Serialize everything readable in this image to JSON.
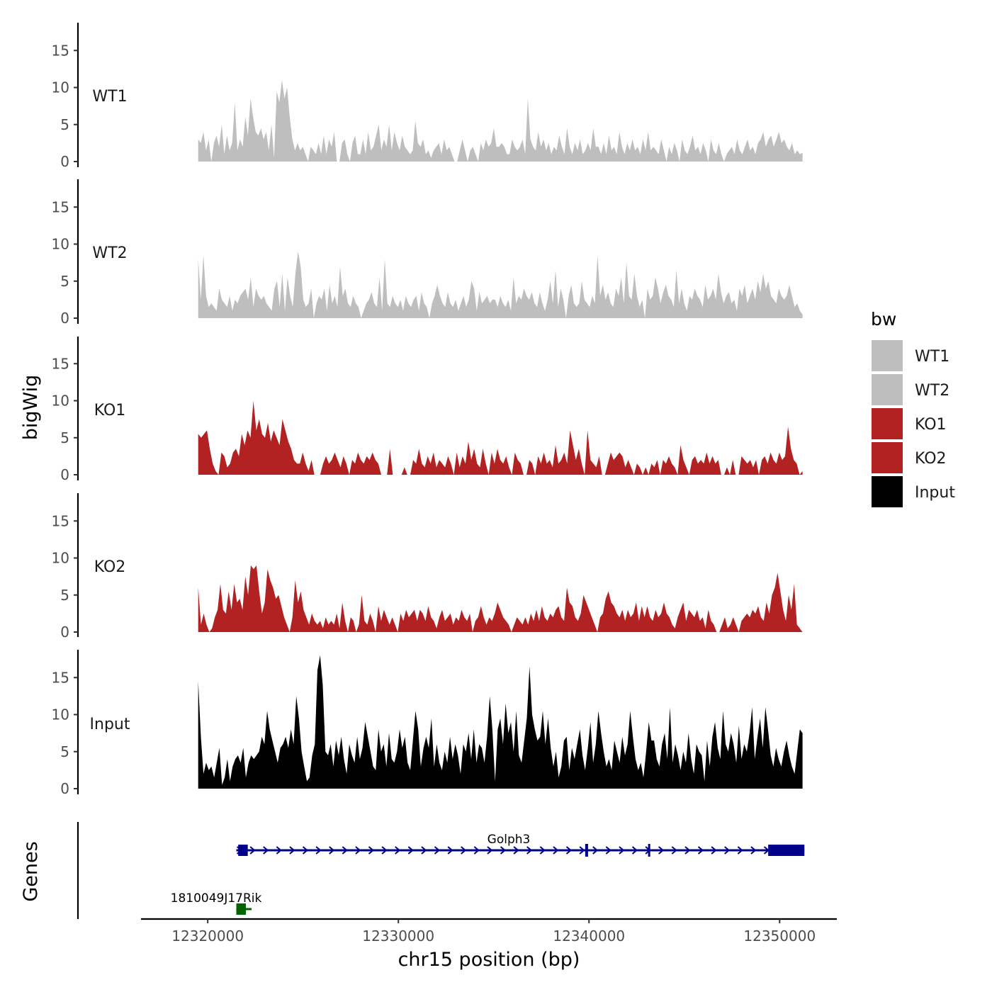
{
  "chart_data": {
    "type": "area",
    "title": "",
    "xlabel": "chr15 position (bp)",
    "ylabel": "bigWig",
    "genes_label": "Genes",
    "xlim": [
      12316500,
      12353000
    ],
    "ylim": [
      0,
      19
    ],
    "x_ticks": [
      12320000,
      12330000,
      12340000,
      12350000
    ],
    "x_tick_labels": [
      "12320000",
      "12330000",
      "12340000",
      "12350000"
    ],
    "y_ticks": [
      0,
      5,
      10,
      15
    ],
    "y_tick_labels": [
      "0",
      "5",
      "10",
      "15"
    ],
    "track_range": [
      12319500,
      12351200
    ],
    "tracks": [
      {
        "name": "WT1",
        "color": "#bebebe",
        "values": [
          3,
          2.5,
          4,
          1.5,
          3,
          0,
          2.5,
          3.5,
          2,
          5,
          1,
          3.5,
          1.5,
          2.5,
          8,
          1.5,
          3,
          2,
          6,
          3.5,
          8.5,
          6,
          4,
          3.5,
          4.5,
          3,
          4,
          1.5,
          5,
          0.5,
          9.5,
          8,
          11,
          8.5,
          10,
          6,
          3,
          1.5,
          2.5,
          1.5,
          2,
          1,
          0,
          2,
          1.5,
          1,
          2.5,
          1,
          3.5,
          1,
          3,
          2,
          4,
          0,
          0,
          2.5,
          3,
          1,
          0,
          2.5,
          3.5,
          1,
          1,
          3,
          1,
          4,
          1.5,
          2,
          3.5,
          5,
          1.5,
          3,
          2,
          5,
          1.5,
          4,
          2.5,
          1.5,
          3.5,
          2,
          1.5,
          1,
          1.5,
          5.5,
          2.5,
          2,
          3,
          1,
          1.5,
          0.5,
          1.5,
          2,
          2.5,
          1,
          3,
          1.5,
          2,
          1,
          0,
          0,
          1.5,
          3,
          1.5,
          0,
          1.5,
          2,
          1,
          0,
          2.5,
          1.5,
          3,
          2,
          2.5,
          4.5,
          2,
          2,
          2.5,
          2,
          1,
          1,
          3,
          2,
          1.5,
          2,
          3,
          1,
          8.5,
          3,
          2,
          1.5,
          4,
          2,
          3,
          1.5,
          2.5,
          1,
          2,
          1.5,
          3.5,
          2,
          1,
          4.5,
          2,
          1,
          2.5,
          1.5,
          3,
          1,
          1.5,
          2.5,
          1.5,
          4.5,
          2,
          2,
          1,
          2.5,
          1,
          3.5,
          1.5,
          2,
          1,
          4,
          2,
          1,
          2.5,
          1.5,
          3,
          1.5,
          2,
          1,
          3,
          1.5,
          4,
          1.5,
          2,
          1.5,
          1,
          3,
          1.5,
          0,
          2,
          1,
          2.5,
          1.5,
          0,
          3,
          1.5,
          1,
          2,
          3.5,
          1.5,
          2,
          1,
          2.5,
          1.5,
          0,
          3,
          1.5,
          1,
          2.5,
          1,
          0,
          1,
          1.5,
          2,
          1,
          3,
          1.5,
          1,
          2,
          3,
          1.5,
          2,
          1,
          2.5,
          3,
          4,
          2,
          3,
          3.5,
          2,
          3,
          4,
          2.5,
          3,
          2,
          1.5,
          2.5,
          1,
          1.5,
          1,
          1.2
        ]
      },
      {
        "name": "WT2",
        "color": "#bebebe",
        "values": [
          8,
          2.5,
          8.5,
          3,
          1.5,
          2,
          1.5,
          1,
          4,
          2.5,
          2,
          1.5,
          3,
          1,
          2.5,
          2,
          3,
          3.5,
          4,
          2.5,
          5.5,
          1.5,
          4,
          3,
          2.5,
          3,
          2,
          1.5,
          1,
          4,
          5,
          1.5,
          6,
          1,
          5.5,
          3,
          1.5,
          6,
          9,
          7,
          2.5,
          1.5,
          2,
          4,
          0,
          2,
          3,
          2.5,
          4,
          1,
          4.5,
          2,
          3,
          1.5,
          7,
          3,
          4,
          2,
          1.5,
          3,
          2,
          1.5,
          0,
          1,
          2,
          2.5,
          3.5,
          2,
          1.5,
          5.5,
          1,
          8,
          2,
          1.5,
          3,
          2,
          1.5,
          2.5,
          1,
          3,
          2,
          1.5,
          2.5,
          3,
          1,
          3.5,
          2,
          1.5,
          0,
          2,
          3,
          4.5,
          3,
          2,
          1.5,
          3.5,
          2,
          1.5,
          2.5,
          1,
          2,
          3,
          1.5,
          2.5,
          5,
          4,
          1,
          3.5,
          2,
          2.5,
          3,
          2,
          2.5,
          2.5,
          1.5,
          3,
          2,
          1.5,
          2.5,
          1,
          5.5,
          2,
          3,
          2.5,
          4,
          3,
          2.5,
          3.5,
          2,
          1.5,
          3.5,
          2,
          1,
          2.5,
          5,
          2,
          6.5,
          1.5,
          4,
          2.5,
          0,
          3,
          4.5,
          2,
          1.5,
          2,
          5,
          2.5,
          2,
          1.5,
          3,
          2,
          8.5,
          3,
          4.5,
          2.5,
          3.5,
          2,
          1.5,
          4,
          3,
          5.5,
          2,
          7.5,
          3,
          2.5,
          6,
          3,
          1.5,
          2.5,
          0,
          4,
          2.5,
          3,
          5.5,
          4,
          2,
          3.5,
          4.5,
          3,
          2.5,
          1.5,
          6.5,
          2,
          4,
          2,
          1,
          3,
          2.5,
          4,
          3,
          2.5,
          1.5,
          4.5,
          2.5,
          3,
          4,
          2.5,
          6,
          3.5,
          2,
          3,
          3.5,
          2,
          2.5,
          1,
          4,
          3,
          4.5,
          2,
          3,
          4,
          2.5,
          5,
          3.5,
          6,
          4,
          5,
          3,
          2.5,
          2,
          4,
          3,
          2.5,
          3,
          4.5,
          3,
          1.5,
          2,
          1,
          0.5
        ]
      },
      {
        "name": "KO1",
        "color": "#b22222",
        "values": [
          5.5,
          5,
          5.5,
          6,
          3.5,
          1.5,
          0.5,
          0,
          3,
          2.5,
          1,
          1.5,
          3,
          3.5,
          2.5,
          5.5,
          4,
          6,
          5,
          10,
          6,
          7.5,
          5.5,
          5,
          7,
          4.5,
          6,
          5,
          4,
          7.5,
          6,
          4.5,
          3.5,
          2,
          1.5,
          1.5,
          3,
          1.5,
          0.5,
          2,
          0,
          0,
          0,
          1.5,
          2.5,
          1.5,
          2,
          3,
          2,
          1,
          2.5,
          1.5,
          0,
          2,
          1.5,
          3,
          2,
          1.5,
          2.5,
          2,
          3,
          2,
          1.5,
          0,
          0,
          0,
          3.5,
          0,
          0,
          0,
          0,
          1,
          0,
          0,
          2,
          1.5,
          3.5,
          1.5,
          1,
          2.5,
          1.5,
          3,
          1,
          2,
          1.5,
          1,
          2.5,
          1.5,
          0,
          3,
          1,
          2.5,
          1.5,
          4.5,
          2,
          3.5,
          1.5,
          1,
          3.5,
          1.5,
          0,
          3,
          1.5,
          3.5,
          2,
          1.5,
          2.5,
          1,
          0,
          3,
          2,
          1.5,
          0,
          0,
          2,
          1.5,
          0,
          2.5,
          1.5,
          3,
          1.5,
          2,
          1,
          4,
          1.5,
          2,
          3,
          1.5,
          6,
          4,
          2,
          3.5,
          1.5,
          0,
          6,
          2,
          1.5,
          1,
          2.5,
          0,
          0,
          1.5,
          3,
          2,
          2.5,
          3,
          2.5,
          1,
          2,
          1,
          0,
          1.5,
          1,
          0,
          1,
          0,
          1.5,
          1,
          2,
          0,
          2,
          1.5,
          2.5,
          1.5,
          1,
          0,
          4,
          2,
          1,
          0,
          2,
          2.5,
          1.5,
          2,
          1.5,
          3,
          1.5,
          2.5,
          1.5,
          2,
          0,
          0,
          1,
          0,
          2,
          0,
          0,
          2.5,
          2,
          1.5,
          2,
          1,
          2,
          0,
          2,
          2.5,
          1.5,
          3,
          2,
          1.5,
          3,
          2,
          2.5,
          6.5,
          3.5,
          2,
          1.5,
          0,
          0.5
        ]
      },
      {
        "name": "KO2",
        "color": "#b22222",
        "values": [
          6,
          1,
          2.5,
          1,
          0,
          0.5,
          2,
          3,
          6.5,
          3,
          2.5,
          5.5,
          3,
          6.5,
          4,
          4.5,
          3,
          7.5,
          5,
          9,
          8.5,
          9,
          5.5,
          2.5,
          4,
          8.5,
          7,
          6,
          4.5,
          5,
          3.5,
          2,
          1,
          0,
          2,
          7,
          4,
          5.5,
          3,
          2,
          1,
          2.5,
          1.5,
          1,
          1.5,
          0.5,
          2,
          1,
          1.5,
          1,
          2.5,
          0.5,
          4,
          1.5,
          0,
          2,
          1.5,
          0,
          1,
          5,
          1.5,
          1,
          2.5,
          1.5,
          0,
          3.5,
          1.5,
          3,
          2,
          1,
          2,
          1,
          0,
          2.5,
          1.5,
          3,
          2,
          2.5,
          3,
          1.5,
          3,
          2.5,
          1.5,
          3.5,
          2,
          1.5,
          0.5,
          2,
          3,
          1.5,
          2,
          2.5,
          1,
          2,
          1.5,
          3,
          2,
          1.5,
          2.5,
          0,
          1.5,
          2,
          3.5,
          2,
          1,
          2,
          1.5,
          2.5,
          4,
          3,
          2,
          1.5,
          1,
          0,
          1,
          2,
          1.5,
          1,
          2,
          1,
          2.5,
          1.5,
          3,
          1.5,
          3.5,
          2,
          1.5,
          2.5,
          2,
          3,
          3.5,
          2,
          1.5,
          6,
          4,
          3.5,
          2,
          1.5,
          2.5,
          5,
          4,
          3,
          2,
          1,
          0,
          2,
          2.5,
          4.5,
          5.5,
          4,
          3.5,
          2.5,
          2,
          3,
          1.5,
          3,
          2,
          2.5,
          4,
          1.5,
          3.5,
          2,
          3.5,
          2,
          1.5,
          3,
          2,
          2.5,
          4,
          2.5,
          2,
          1,
          0.5,
          2,
          3,
          4,
          1.5,
          3,
          2.5,
          2,
          3,
          1.5,
          2,
          0.5,
          3,
          1.5,
          1,
          0,
          0,
          1,
          2,
          0.5,
          1,
          2,
          1,
          0,
          1.5,
          2,
          2.5,
          2,
          3,
          2.5,
          3.5,
          2,
          1.5,
          4,
          2.5,
          5,
          6,
          8,
          5.5,
          3,
          1.5,
          5,
          3,
          6.5,
          1,
          0.5,
          0
        ]
      },
      {
        "name": "Input",
        "color": "#000000",
        "values": [
          14.5,
          7,
          2,
          3.5,
          2.5,
          3,
          1.5,
          3.5,
          5.5,
          0.5,
          1.5,
          4,
          1,
          3,
          4,
          4.5,
          3.5,
          5.5,
          1.5,
          3.5,
          4.5,
          4,
          4.5,
          5,
          7,
          6,
          10.5,
          8,
          6.5,
          5,
          3.5,
          5.5,
          6,
          7,
          5.5,
          8,
          6,
          12.5,
          9.5,
          5,
          3,
          1,
          1.5,
          4.5,
          6,
          16,
          18,
          14,
          5,
          4.5,
          6,
          3,
          6.5,
          4.5,
          7,
          4,
          2,
          6,
          4.5,
          3.5,
          7,
          4,
          5.5,
          9,
          7,
          5,
          3,
          2.5,
          8,
          5,
          6,
          3,
          7.5,
          4,
          3.5,
          5,
          8,
          5.5,
          7,
          3.5,
          2.5,
          6.5,
          10.5,
          8,
          3,
          5.5,
          7,
          5.5,
          9.5,
          3,
          6,
          3.5,
          2.5,
          5,
          3.5,
          7,
          4,
          6,
          4.5,
          2,
          6,
          5,
          7.5,
          4,
          8,
          3.5,
          6,
          5.5,
          3.5,
          7,
          12.5,
          8,
          1,
          8,
          9.5,
          6,
          11.5,
          7.5,
          9,
          5,
          10.5,
          4.5,
          3.5,
          6.5,
          9.5,
          16.5,
          10,
          8,
          6.5,
          7,
          10.5,
          6,
          9.5,
          5.5,
          3,
          5,
          1.5,
          3,
          6.5,
          7,
          2.5,
          5.5,
          4,
          6,
          8,
          4.5,
          2.5,
          5.5,
          9,
          3.5,
          6,
          10.5,
          7.5,
          5,
          3,
          4,
          2.5,
          6.5,
          5,
          3.5,
          7,
          4.5,
          6,
          10.5,
          7,
          4,
          2.5,
          3.5,
          1.5,
          5,
          9,
          6.5,
          6.5,
          4,
          3,
          6,
          7.5,
          4,
          11,
          3.5,
          6,
          4.5,
          2.5,
          5,
          3.5,
          7.5,
          4,
          2,
          6,
          5,
          4.5,
          1,
          6.5,
          3,
          7,
          9,
          5.5,
          4,
          10.5,
          6,
          5,
          7.5,
          6,
          3.5,
          8.5,
          4,
          6,
          5,
          7.5,
          11,
          4,
          7,
          9.5,
          5.5,
          11,
          8,
          4.5,
          3,
          5.5,
          4,
          3,
          5,
          6.5,
          4.5,
          3,
          2,
          5,
          8,
          7.5
        ]
      }
    ],
    "genes": [
      {
        "name": "Golph3",
        "color": "#00008b",
        "start": 12321500,
        "end": 12351300,
        "strand": "+",
        "exons": [
          [
            12321600,
            12322100
          ],
          [
            12339800,
            12339950
          ],
          [
            12343100,
            12343200
          ],
          [
            12349400,
            12351300
          ]
        ]
      },
      {
        "name": "1810049J17Rik",
        "color": "#006400",
        "start": 12321500,
        "end": 12322300,
        "strand": "-",
        "exons": [
          [
            12321500,
            12322000
          ]
        ]
      }
    ],
    "legend": {
      "title": "bw",
      "position": "right",
      "entries": [
        {
          "label": "WT1",
          "color": "#bebebe"
        },
        {
          "label": "WT2",
          "color": "#bebebe"
        },
        {
          "label": "KO1",
          "color": "#b22222"
        },
        {
          "label": "KO2",
          "color": "#b22222"
        },
        {
          "label": "Input",
          "color": "#000000"
        }
      ]
    }
  }
}
